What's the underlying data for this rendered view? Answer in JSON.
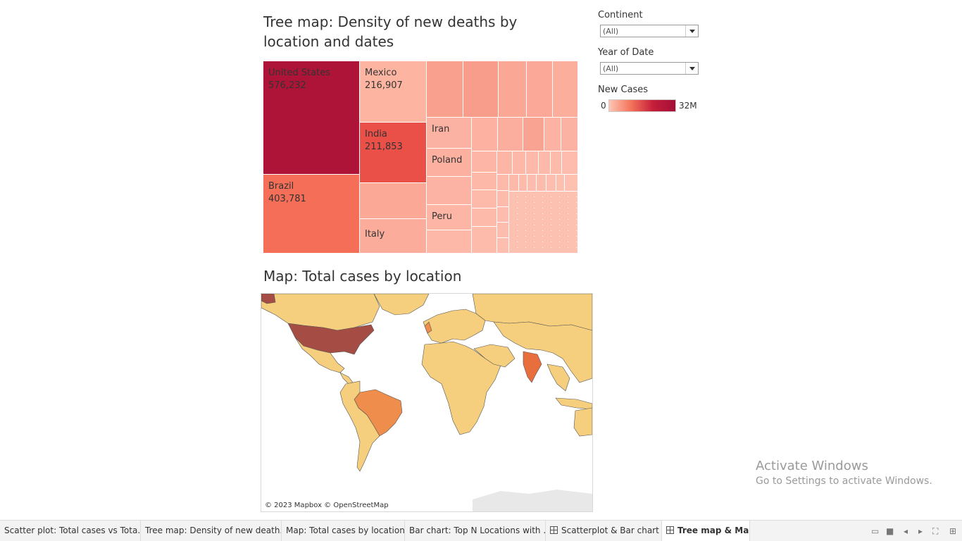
{
  "treemap": {
    "title": "Tree map: Density of new deaths by location and dates",
    "labels": {
      "united_states": {
        "name": "United States",
        "value": "576,232"
      },
      "brazil": {
        "name": "Brazil",
        "value": "403,781"
      },
      "mexico": {
        "name": "Mexico",
        "value": "216,907"
      },
      "india": {
        "name": "India",
        "value": "211,853"
      },
      "italy": {
        "name": "Italy"
      },
      "iran": {
        "name": "Iran"
      },
      "poland": {
        "name": "Poland"
      },
      "peru": {
        "name": "Peru"
      }
    },
    "colors": {
      "dark": "#ad1437",
      "mid": "#ea4f48",
      "orange": "#f46e58",
      "light": "#fdb4a1",
      "pale": "#fbb0a0"
    }
  },
  "map": {
    "title": "Map: Total cases by location",
    "credit": "© 2023 Mapbox © OpenStreetMap",
    "colors": {
      "high": "#a54d44",
      "mid": "#ee8d4c",
      "india": "#e86e3d",
      "low": "#f5cf7d",
      "ocean": "#ffffff"
    }
  },
  "filters": {
    "continent": {
      "label": "Continent",
      "value": "(All)"
    },
    "year": {
      "label": "Year of Date",
      "value": "(All)"
    },
    "legend": {
      "label": "New Cases",
      "min": "0",
      "max": "32M"
    }
  },
  "tabs": [
    "Scatter plot: Total cases vs Tota...",
    "Tree map: Density of new death...",
    "Map: Total cases by location",
    "Bar chart: Top N Locations with ...",
    "Scatterplot & Bar chart",
    "Tree map & Map"
  ],
  "watermark": {
    "line1": "Activate Windows",
    "line2": "Go to Settings to activate Windows."
  }
}
